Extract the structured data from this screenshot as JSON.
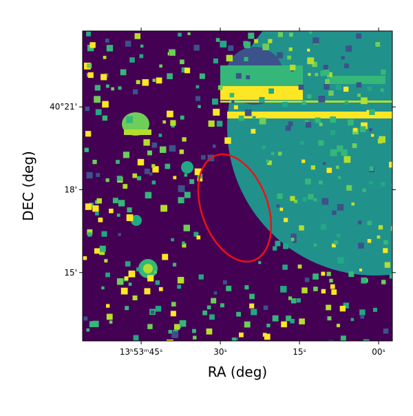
{
  "chart_data": {
    "type": "image",
    "xlabel": "RA (deg)",
    "ylabel": "DEC (deg)",
    "xlim": [
      56.1,
      -2.6
    ],
    "xticks": [
      {
        "value": 45,
        "label": "13ʰ53ᵐ45ˢ"
      },
      {
        "value": 30,
        "label": "30ˢ"
      },
      {
        "value": 15,
        "label": "15ˢ"
      },
      {
        "value": 0,
        "label": "00ˢ"
      }
    ],
    "ylim": [
      12.525,
      23.75
    ],
    "yticks": [
      {
        "value": 21,
        "label": "40°21'"
      },
      {
        "value": 18,
        "label": "18'"
      },
      {
        "value": 15,
        "label": "15'"
      }
    ]
  }
}
